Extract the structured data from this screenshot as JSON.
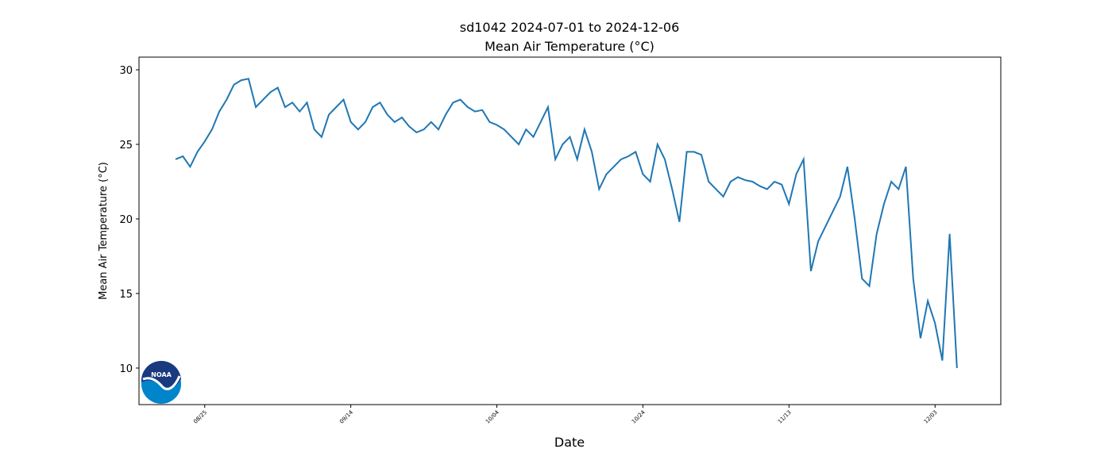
{
  "chart_data": {
    "type": "line",
    "title": "sd1042 2024-07-01 to 2024-12-06",
    "subtitle": "Mean Air Temperature (°C)",
    "x_label": "Date",
    "y_label": "Mean Air Temperature (°C)",
    "x": [
      "08/21",
      "08/22",
      "08/23",
      "08/24",
      "08/25",
      "08/26",
      "08/27",
      "08/28",
      "08/29",
      "08/30",
      "08/31",
      "09/01",
      "09/02",
      "09/03",
      "09/04",
      "09/05",
      "09/06",
      "09/07",
      "09/08",
      "09/09",
      "09/10",
      "09/11",
      "09/12",
      "09/13",
      "09/14",
      "09/15",
      "09/16",
      "09/17",
      "09/18",
      "09/19",
      "09/20",
      "09/21",
      "09/22",
      "09/23",
      "09/24",
      "09/25",
      "09/26",
      "09/27",
      "09/28",
      "09/29",
      "09/30",
      "10/01",
      "10/02",
      "10/03",
      "10/04",
      "10/05",
      "10/06",
      "10/07",
      "10/08",
      "10/09",
      "10/10",
      "10/11",
      "10/12",
      "10/13",
      "10/14",
      "10/15",
      "10/16",
      "10/17",
      "10/18",
      "10/19",
      "10/20",
      "10/21",
      "10/22",
      "10/23",
      "10/24",
      "10/25",
      "10/26",
      "10/27",
      "10/28",
      "10/29",
      "10/30",
      "10/31",
      "11/01",
      "11/02",
      "11/03",
      "11/04",
      "11/05",
      "11/06",
      "11/07",
      "11/08",
      "11/09",
      "11/10",
      "11/11",
      "11/12",
      "11/13",
      "11/14",
      "11/15",
      "11/16",
      "11/17",
      "11/18",
      "11/19",
      "11/20",
      "11/21",
      "11/22",
      "11/23",
      "11/24",
      "11/25",
      "11/26",
      "11/27",
      "11/28",
      "11/29",
      "11/30",
      "12/01",
      "12/02",
      "12/03",
      "12/04",
      "12/05",
      "12/06"
    ],
    "series": [
      {
        "name": "Mean Air Temperature",
        "color": "#1f77b4",
        "values": [
          24.0,
          24.2,
          23.5,
          24.5,
          25.2,
          26.0,
          27.2,
          28.0,
          29.0,
          29.3,
          29.4,
          27.5,
          28.0,
          28.5,
          28.8,
          27.5,
          27.8,
          27.2,
          27.8,
          26.0,
          25.5,
          27.0,
          27.5,
          28.0,
          26.5,
          26.0,
          26.5,
          27.5,
          27.8,
          27.0,
          26.5,
          26.8,
          26.2,
          25.8,
          26.0,
          26.5,
          26.0,
          27.0,
          27.8,
          28.0,
          27.5,
          27.2,
          27.3,
          26.5,
          26.3,
          26.0,
          25.5,
          25.0,
          26.0,
          25.5,
          26.5,
          27.5,
          24.0,
          25.0,
          25.5,
          24.0,
          26.0,
          24.5,
          22.0,
          23.0,
          23.5,
          24.0,
          24.2,
          24.5,
          23.0,
          22.5,
          25.0,
          24.0,
          22.0,
          19.8,
          24.5,
          24.5,
          24.3,
          22.5,
          22.0,
          21.5,
          22.5,
          22.8,
          22.6,
          22.5,
          22.2,
          22.0,
          22.5,
          22.3,
          21.0,
          23.0,
          24.0,
          16.5,
          18.5,
          19.5,
          20.5,
          21.5,
          23.5,
          20.0,
          16.0,
          15.5,
          19.0,
          21.0,
          22.5,
          22.0,
          23.5,
          16.0,
          12.0,
          14.5,
          13.0,
          10.5,
          19.0,
          10.0
        ]
      }
    ],
    "xlim": [
      "08/16",
      "12/12"
    ],
    "xticks": [
      "08/25",
      "09/14",
      "10/04",
      "10/24",
      "11/13",
      "12/03"
    ],
    "ylim": [
      7.55,
      30.85
    ],
    "yticks": [
      10,
      15,
      20,
      25,
      30
    ]
  }
}
